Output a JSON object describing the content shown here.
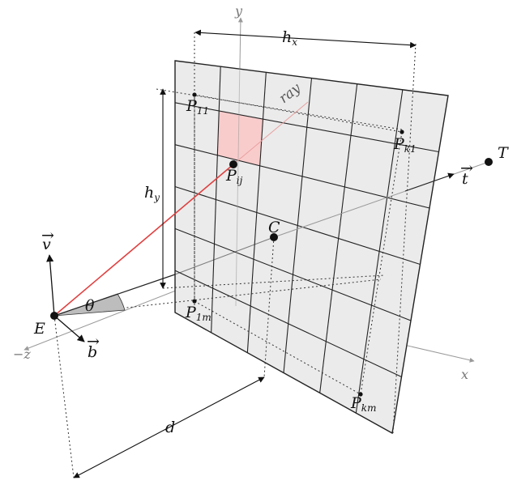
{
  "labels": {
    "E": "E",
    "C": "C",
    "T": "T",
    "theta": "θ",
    "d": "d",
    "ray": "ray",
    "hx_base": "h",
    "hx_sub": "x",
    "hy_base": "h",
    "hy_sub": "y",
    "axis_y": "y",
    "axis_x": "x",
    "axis_negz": "−z",
    "vec_v": "v",
    "vec_b": "b",
    "vec_t": "t",
    "vec_arrow": "→",
    "P11_base": "P",
    "P11_sub": "11",
    "Pk1_base": "P",
    "Pk1_sub": "k1",
    "Pij_base": "P",
    "Pij_sub": "ij",
    "P1m_base": "P",
    "P1m_sub": "1m",
    "Pkm_base": "P",
    "Pkm_sub": "km"
  },
  "colors": {
    "plane_fill": "#ebebeb",
    "highlight_cell": "#f9cccc",
    "ray_line": "#e04040",
    "grid_line": "#222222",
    "axis_line": "#9a9a9a",
    "angle_wedge": "#bdbdbd"
  },
  "grid": {
    "columns": 6,
    "rows": 6,
    "highlight_cell": [
      1,
      1
    ]
  }
}
